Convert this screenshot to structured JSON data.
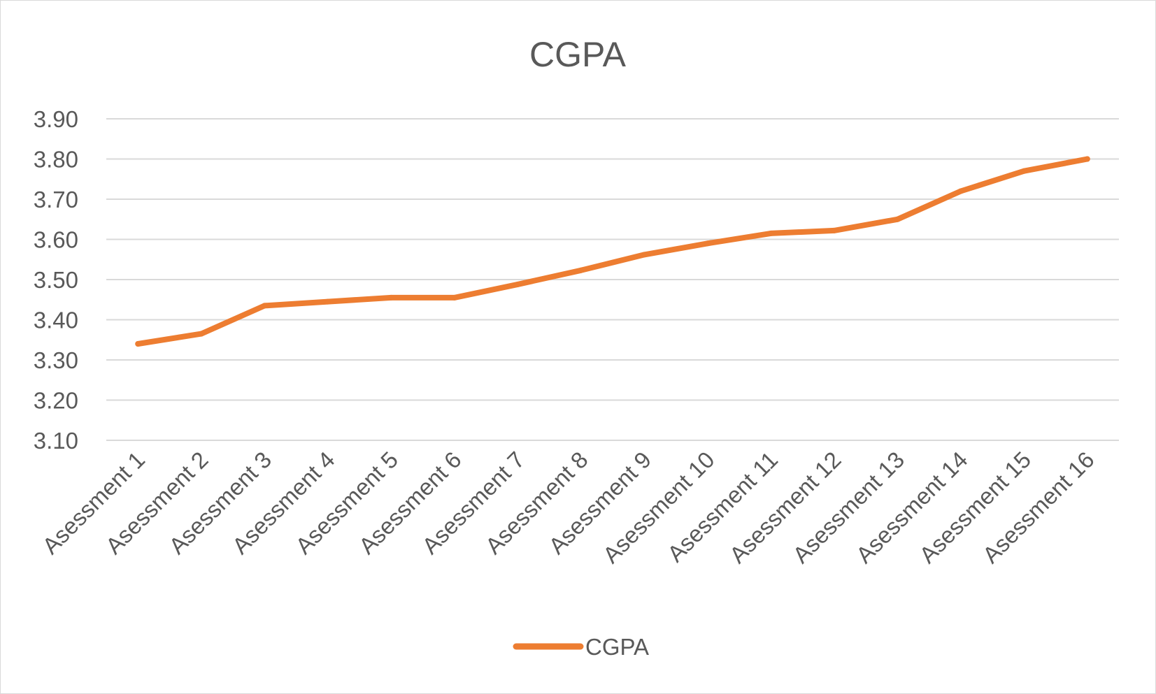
{
  "chart_data": {
    "type": "line",
    "title": "CGPA",
    "xlabel": "",
    "ylabel": "",
    "categories": [
      "Asessment 1",
      "Asessment 2",
      "Asessment 3",
      "Asessment 4",
      "Asessment 5",
      "Asessment 6",
      "Asessment 7",
      "Asessment 8",
      "Asessment 9",
      "Asessment 10",
      "Asessment 11",
      "Asessment 12",
      "Asessment 13",
      "Asessment 14",
      "Asessment 15",
      "Asessment 16"
    ],
    "series": [
      {
        "name": "CGPA",
        "color": "#ed7d31",
        "values": [
          3.34,
          3.365,
          3.435,
          3.445,
          3.455,
          3.455,
          3.488,
          3.523,
          3.562,
          3.59,
          3.615,
          3.622,
          3.65,
          3.72,
          3.77,
          3.8
        ]
      }
    ],
    "ylim": [
      3.1,
      3.9
    ],
    "yticks": [
      "3.90",
      "3.80",
      "3.70",
      "3.60",
      "3.50",
      "3.40",
      "3.30",
      "3.20",
      "3.10"
    ],
    "grid": true,
    "legend_position": "bottom"
  }
}
